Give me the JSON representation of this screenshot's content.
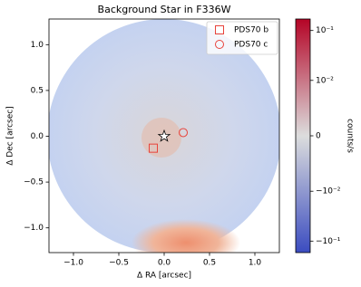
{
  "chart_data": {
    "type": "image",
    "title": "Background Star in F336W",
    "xlabel": "Δ RA [arcsec]",
    "ylabel": "Δ Dec [arcsec]",
    "xlim": [
      -1.27,
      1.27
    ],
    "ylim": [
      -1.27,
      1.28
    ],
    "xticks": [
      {
        "value": -1.0,
        "label": "−1.0"
      },
      {
        "value": -0.5,
        "label": "−0.5"
      },
      {
        "value": 0,
        "label": "0.0"
      },
      0.5,
      {
        "value": 1.0,
        "label": "1.0"
      }
    ],
    "yticks": [
      {
        "value": -1.0,
        "label": "−1.0"
      },
      {
        "value": -0.5,
        "label": "−0.5"
      },
      {
        "value": 0,
        "label": "0.0"
      },
      0.5,
      {
        "value": 1.0,
        "label": "1.0"
      }
    ],
    "star_position": [
      0,
      0
    ],
    "series": [
      {
        "name": "PDS70 b",
        "marker": "square",
        "color": "#e8433b",
        "x": [
          -0.12
        ],
        "y": [
          -0.13
        ]
      },
      {
        "name": "PDS70 c",
        "marker": "circle",
        "color": "#e8433b",
        "x": [
          0.21
        ],
        "y": [
          0.04
        ]
      }
    ],
    "legend": "upper right",
    "colorbar": {
      "label": "counts/s",
      "scale": "symlog",
      "linthresh": 0.01,
      "linscale": 1,
      "lim": [
        -0.17,
        0.17
      ],
      "colors": [
        "#3b4cc0",
        "#dcdddd",
        "#b40426"
      ],
      "ticks": [
        {
          "value": -0.1,
          "label": "−10⁻¹"
        },
        {
          "value": -0.01,
          "label": "−10⁻²"
        },
        0,
        {
          "value": 0.01,
          "label": "10⁻²"
        },
        {
          "value": 0.1,
          "label": "10⁻¹"
        }
      ]
    }
  }
}
